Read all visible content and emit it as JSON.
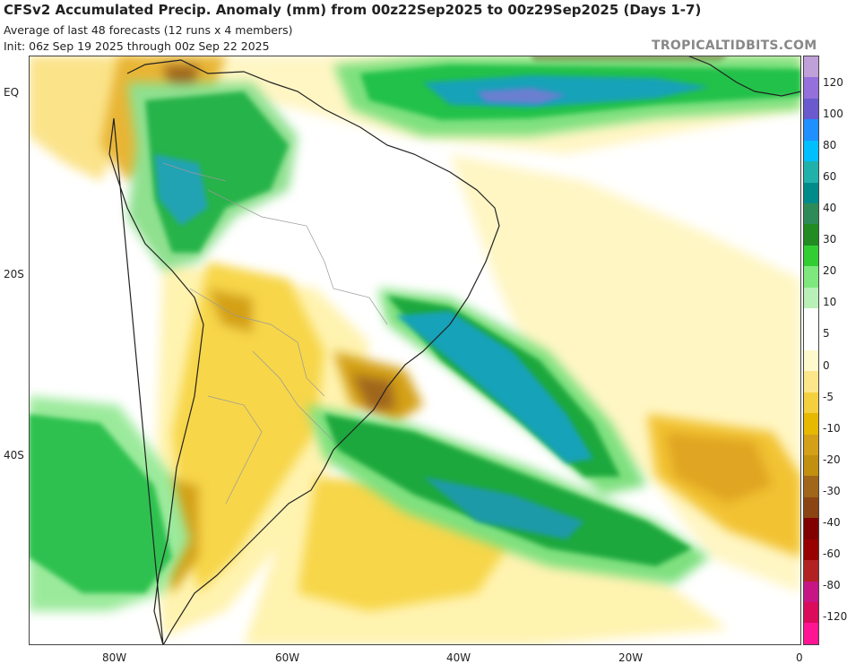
{
  "header": {
    "title": "CFSv2 Accumulated Precip. Anomaly (mm) from 00z22Sep2025 to 00z29Sep2025 (Days 1-7)",
    "subtitle1": "Average of last 48 forecasts (12 runs x 4 members)",
    "subtitle2": "Init: 06z Sep 19 2025 through 00z Sep 22 2025",
    "brand": "TROPICALTIDBITS.COM"
  },
  "axes": {
    "y_labels": [
      "EQ",
      "20S",
      "40S"
    ],
    "x_labels": [
      "80W",
      "60W",
      "40W",
      "20W",
      "0"
    ]
  },
  "colorbar": {
    "labels": [
      "120",
      "100",
      "80",
      "60",
      "40",
      "30",
      "20",
      "10",
      "5",
      "0",
      "-5",
      "-10",
      "-20",
      "-30",
      "-40",
      "-60",
      "-80",
      "-120"
    ],
    "colors": [
      "#c0a0d8",
      "#9370db",
      "#6a5acd",
      "#1e90ff",
      "#00bfff",
      "#20b2aa",
      "#008b8b",
      "#2e8b57",
      "#228b22",
      "#32cd32",
      "#7ee87e",
      "#b8f0b8",
      "#ffffff",
      "#ffffff",
      "#fffacd",
      "#fde68a",
      "#f4d03f",
      "#e6b800",
      "#d4a017",
      "#c1900e",
      "#a0661a",
      "#8b4513",
      "#800000",
      "#990000",
      "#b22222",
      "#c71585",
      "#db0a5b",
      "#ff1493"
    ]
  }
}
